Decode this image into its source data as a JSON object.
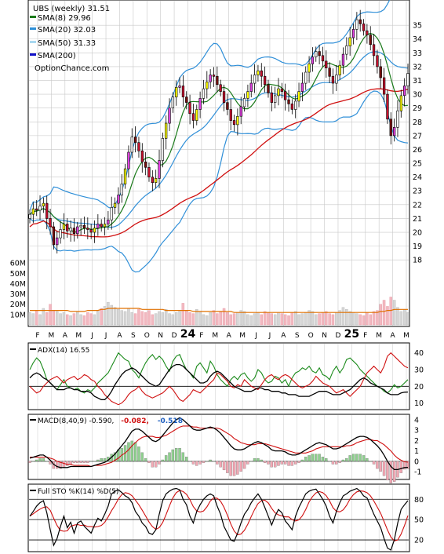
{
  "chart_data": {
    "type": "stock-chart",
    "price_panel": {
      "ticker_label": "UBS (weekly) 31.51",
      "legend": [
        {
          "label": "SMA(8) 29.96",
          "color": "#1a7a1a"
        },
        {
          "label": "SMA(20) 32.03",
          "color": "#2f8fd8"
        },
        {
          "label": "SMA(50) 31.33",
          "color": "#a8d8f0"
        },
        {
          "label": "SMA(200)",
          "color": "#1010c8"
        }
      ],
      "watermark": "OptionChance.com",
      "y_ticks": [
        18,
        19,
        20,
        21,
        22,
        23,
        24,
        25,
        26,
        27,
        28,
        29,
        30,
        31,
        32,
        33,
        34,
        35
      ],
      "ylim": [
        17.5,
        36.6
      ],
      "volume_ticks": [
        "60M",
        "50M",
        "40M",
        "30M",
        "20M",
        "10M"
      ],
      "volume_values": [
        60,
        50,
        40,
        30,
        20,
        10
      ],
      "volume_max": 67,
      "x_labels": [
        "F",
        "M",
        "A",
        "M",
        "J",
        "J",
        "A",
        "S",
        "O",
        "N",
        "D",
        "24",
        "F",
        "M",
        "A",
        "M",
        "J",
        "J",
        "A",
        "S",
        "O",
        "N",
        "D",
        "25",
        "F",
        "M",
        "A",
        "M"
      ],
      "weekly_close": [
        21.3,
        21.7,
        21.6,
        21.9,
        22.1,
        21.0,
        20.4,
        19.1,
        19.6,
        20.2,
        20.6,
        20.1,
        20.3,
        19.9,
        20.4,
        20.5,
        20.3,
        20.2,
        20.0,
        20.3,
        20.6,
        20.4,
        20.6,
        20.9,
        21.8,
        22.1,
        22.7,
        23.5,
        24.6,
        25.8,
        26.9,
        26.5,
        25.9,
        25.1,
        24.7,
        24.0,
        23.6,
        23.9,
        25.2,
        26.8,
        27.9,
        29.0,
        29.8,
        30.5,
        30.6,
        29.8,
        29.4,
        28.6,
        28.1,
        28.9,
        29.7,
        30.4,
        30.9,
        31.4,
        31.3,
        30.7,
        30.2,
        29.4,
        28.9,
        28.1,
        27.8,
        28.4,
        29.1,
        29.7,
        30.2,
        30.8,
        31.4,
        31.7,
        31.3,
        30.7,
        30.1,
        29.4,
        29.9,
        30.4,
        30.2,
        29.6,
        29.3,
        28.9,
        29.5,
        30.2,
        30.8,
        31.6,
        32.2,
        32.7,
        33.1,
        32.8,
        32.4,
        31.9,
        31.3,
        30.8,
        31.4,
        32.1,
        32.9,
        33.5,
        34.1,
        34.7,
        35.4,
        35.1,
        34.6,
        34.3,
        33.6,
        32.8,
        32.0,
        31.2,
        30.0,
        28.2,
        27.0,
        27.6,
        28.8,
        29.9,
        30.6,
        31.51
      ],
      "volume": [
        12,
        11,
        14,
        10,
        16,
        12,
        20,
        14,
        13,
        11,
        12,
        10,
        9,
        11,
        13,
        10,
        9,
        12,
        11,
        10,
        14,
        16,
        18,
        22,
        19,
        17,
        15,
        14,
        13,
        16,
        12,
        11,
        15,
        13,
        12,
        14,
        10,
        11,
        13,
        12,
        15,
        11,
        10,
        12,
        13,
        21,
        14,
        12,
        11,
        15,
        13,
        10,
        9,
        12,
        14,
        11,
        13,
        16,
        12,
        10,
        11,
        12,
        14,
        13,
        10,
        9,
        11,
        12,
        10,
        13,
        12,
        11,
        10,
        12,
        11,
        10,
        9,
        12,
        13,
        10,
        11,
        12,
        14,
        13,
        10,
        11,
        12,
        13,
        11,
        10,
        12,
        14,
        17,
        15,
        13,
        12,
        11,
        10,
        9,
        12,
        10,
        13,
        14,
        20,
        24,
        18,
        27,
        24,
        17,
        13,
        15,
        12
      ],
      "volume_sma": [
        14,
        14,
        14,
        14,
        14,
        14,
        14,
        14,
        14,
        14,
        14,
        14,
        13,
        13,
        13,
        13,
        13,
        14,
        14,
        14,
        14,
        15,
        15,
        16,
        16,
        16,
        16,
        16,
        16,
        16,
        16,
        16,
        16,
        15,
        15,
        15,
        15,
        15,
        15,
        15,
        14,
        14,
        14,
        14,
        14,
        14,
        14,
        14,
        13,
        13,
        13,
        13,
        13,
        13,
        13,
        13,
        13,
        13,
        13,
        13,
        12,
        12,
        12,
        12,
        12,
        12,
        12,
        12,
        12,
        12,
        12,
        12,
        12,
        12,
        12,
        12,
        12,
        12,
        12,
        12,
        12,
        12,
        12,
        12,
        12,
        12,
        12,
        12,
        12,
        12,
        12,
        12,
        12,
        12,
        12,
        12,
        12,
        12,
        12,
        12,
        12,
        12,
        12,
        13,
        13,
        14,
        14,
        15,
        15,
        15,
        15,
        15
      ]
    },
    "adx_panel": {
      "label": "ADX(14) 16.55",
      "y_ticks": [
        40,
        30,
        20,
        10
      ],
      "ylim": [
        7,
        45
      ],
      "hlines": [
        20
      ],
      "adx": [
        25,
        27,
        28,
        27,
        25,
        24,
        22,
        20,
        18,
        18,
        18,
        19,
        19,
        18,
        18,
        17,
        17,
        17,
        16,
        14,
        13,
        12,
        12,
        14,
        17,
        21,
        24,
        27,
        29,
        30,
        31,
        30,
        28,
        26,
        24,
        22,
        21,
        20,
        21,
        24,
        27,
        30,
        32,
        33,
        33,
        32,
        30,
        28,
        26,
        24,
        22,
        22,
        23,
        26,
        28,
        29,
        28,
        26,
        24,
        22,
        20,
        19,
        18,
        17,
        17,
        17,
        18,
        19,
        19,
        18,
        18,
        17,
        17,
        17,
        16,
        16,
        15,
        15,
        15,
        14,
        14,
        14,
        14,
        15,
        16,
        17,
        17,
        17,
        16,
        15,
        15,
        15,
        16,
        17,
        18,
        20,
        22,
        24,
        25,
        24,
        22,
        21,
        20,
        19,
        18,
        16,
        15,
        15,
        15,
        16,
        16.5,
        16.55
      ],
      "plus_di": [
        30,
        34,
        37,
        35,
        30,
        24,
        22,
        20,
        18,
        21,
        24,
        20,
        19,
        18,
        19,
        17,
        16,
        18,
        17,
        19,
        22,
        24,
        26,
        28,
        32,
        36,
        40,
        38,
        36,
        35,
        30,
        28,
        25,
        30,
        34,
        37,
        39,
        36,
        38,
        36,
        32,
        29,
        35,
        38,
        39,
        34,
        30,
        28,
        25,
        32,
        34,
        31,
        28,
        35,
        32,
        27,
        24,
        22,
        20,
        24,
        26,
        24,
        27,
        28,
        25,
        23,
        25,
        30,
        28,
        24,
        22,
        23,
        26,
        25,
        22,
        24,
        20,
        25,
        28,
        29,
        31,
        30,
        32,
        29,
        28,
        31,
        27,
        26,
        24,
        29,
        32,
        28,
        31,
        36,
        37,
        35,
        33,
        30,
        28,
        26,
        24,
        22,
        20,
        19,
        17,
        16,
        18,
        21,
        19,
        20,
        22,
        24
      ],
      "minus_di": [
        20,
        18,
        16,
        17,
        20,
        22,
        24,
        25,
        26,
        24,
        22,
        24,
        25,
        26,
        24,
        25,
        27,
        26,
        24,
        23,
        20,
        18,
        15,
        13,
        11,
        10,
        9,
        10,
        12,
        15,
        17,
        18,
        20,
        17,
        15,
        14,
        13,
        14,
        15,
        16,
        18,
        20,
        18,
        15,
        12,
        11,
        13,
        15,
        18,
        17,
        16,
        18,
        20,
        22,
        24,
        28,
        27,
        25,
        23,
        20,
        19,
        21,
        20,
        24,
        22,
        20,
        19,
        18,
        21,
        24,
        26,
        27,
        25,
        24,
        26,
        27,
        26,
        24,
        22,
        20,
        19,
        20,
        21,
        23,
        26,
        24,
        22,
        21,
        20,
        18,
        16,
        17,
        18,
        16,
        14,
        16,
        18,
        20,
        24,
        28,
        30,
        32,
        30,
        28,
        32,
        38,
        40,
        38,
        36,
        34,
        32,
        31
      ]
    },
    "macd_panel": {
      "label": "MACD(8,40,9) -0.590,",
      "signal_label": "-0.082,",
      "hist_label": "-0.518",
      "y_ticks": [
        4,
        3,
        2,
        1,
        0,
        -1
      ],
      "ylim": [
        -1.6,
        4.3
      ],
      "macd": [
        0.3,
        0.4,
        0.5,
        0.6,
        0.6,
        0.4,
        0.1,
        -0.3,
        -0.5,
        -0.6,
        -0.6,
        -0.6,
        -0.5,
        -0.5,
        -0.5,
        -0.5,
        -0.5,
        -0.5,
        -0.5,
        -0.4,
        -0.3,
        -0.2,
        -0.1,
        0.1,
        0.4,
        0.7,
        1.1,
        1.5,
        1.9,
        2.4,
        2.9,
        3.1,
        3.1,
        2.9,
        2.6,
        2.3,
        2.0,
        1.9,
        2.1,
        2.5,
        2.9,
        3.3,
        3.7,
        4.0,
        4.2,
        4.0,
        3.7,
        3.4,
        3.1,
        3.0,
        3.0,
        3.1,
        3.2,
        3.3,
        3.2,
        3.0,
        2.7,
        2.3,
        1.9,
        1.5,
        1.2,
        1.1,
        1.1,
        1.2,
        1.4,
        1.6,
        1.8,
        1.9,
        1.8,
        1.6,
        1.4,
        1.1,
        1.0,
        1.0,
        1.0,
        0.9,
        0.7,
        0.6,
        0.6,
        0.7,
        0.9,
        1.1,
        1.3,
        1.5,
        1.7,
        1.8,
        1.7,
        1.6,
        1.4,
        1.2,
        1.2,
        1.3,
        1.5,
        1.7,
        1.9,
        2.1,
        2.3,
        2.4,
        2.4,
        2.3,
        2.1,
        1.8,
        1.5,
        1.1,
        0.6,
        0.0,
        -0.5,
        -0.8,
        -0.8,
        -0.7,
        -0.6,
        -0.59
      ],
      "signal": [
        0.4,
        0.4,
        0.4,
        0.4,
        0.4,
        0.4,
        0.3,
        0.2,
        0.0,
        -0.1,
        -0.2,
        -0.3,
        -0.3,
        -0.4,
        -0.4,
        -0.4,
        -0.4,
        -0.4,
        -0.5,
        -0.4,
        -0.4,
        -0.4,
        -0.3,
        -0.2,
        -0.1,
        0.1,
        0.3,
        0.6,
        0.8,
        1.1,
        1.5,
        1.8,
        2.1,
        2.3,
        2.4,
        2.4,
        2.4,
        2.3,
        2.3,
        2.4,
        2.5,
        2.7,
        2.9,
        3.1,
        3.3,
        3.4,
        3.4,
        3.4,
        3.3,
        3.3,
        3.2,
        3.2,
        3.2,
        3.2,
        3.2,
        3.2,
        3.1,
        2.9,
        2.7,
        2.5,
        2.2,
        2.0,
        1.8,
        1.7,
        1.6,
        1.6,
        1.6,
        1.7,
        1.7,
        1.7,
        1.6,
        1.5,
        1.4,
        1.3,
        1.2,
        1.1,
        1.0,
        0.9,
        0.8,
        0.8,
        0.8,
        0.8,
        0.9,
        1.0,
        1.2,
        1.3,
        1.4,
        1.4,
        1.4,
        1.4,
        1.4,
        1.4,
        1.4,
        1.5,
        1.5,
        1.6,
        1.8,
        1.9,
        2.0,
        2.1,
        2.1,
        2.0,
        2.0,
        1.8,
        1.6,
        1.3,
        1.0,
        0.6,
        0.3,
        0.1,
        -0.05,
        -0.082
      ]
    },
    "sto_panel": {
      "label": "Full STO %K(14) %D(5)",
      "y_ticks": [
        80,
        50,
        20
      ],
      "ylim": [
        5,
        100
      ],
      "hlines": [
        80,
        50,
        20
      ],
      "k": [
        55,
        62,
        70,
        75,
        78,
        60,
        35,
        12,
        22,
        40,
        55,
        38,
        46,
        30,
        45,
        48,
        40,
        35,
        30,
        42,
        52,
        48,
        58,
        70,
        88,
        92,
        94,
        90,
        85,
        82,
        75,
        62,
        55,
        45,
        40,
        30,
        28,
        35,
        58,
        78,
        88,
        92,
        95,
        96,
        94,
        80,
        72,
        55,
        45,
        62,
        72,
        80,
        85,
        88,
        85,
        70,
        58,
        40,
        30,
        20,
        18,
        30,
        45,
        58,
        65,
        75,
        82,
        88,
        80,
        68,
        55,
        42,
        55,
        65,
        60,
        48,
        42,
        35,
        55,
        68,
        78,
        88,
        92,
        94,
        95,
        88,
        80,
        70,
        55,
        45,
        62,
        75,
        85,
        88,
        92,
        94,
        96,
        92,
        85,
        82,
        70,
        58,
        48,
        38,
        22,
        8,
        5,
        20,
        45,
        65,
        72,
        78
      ]
    }
  }
}
